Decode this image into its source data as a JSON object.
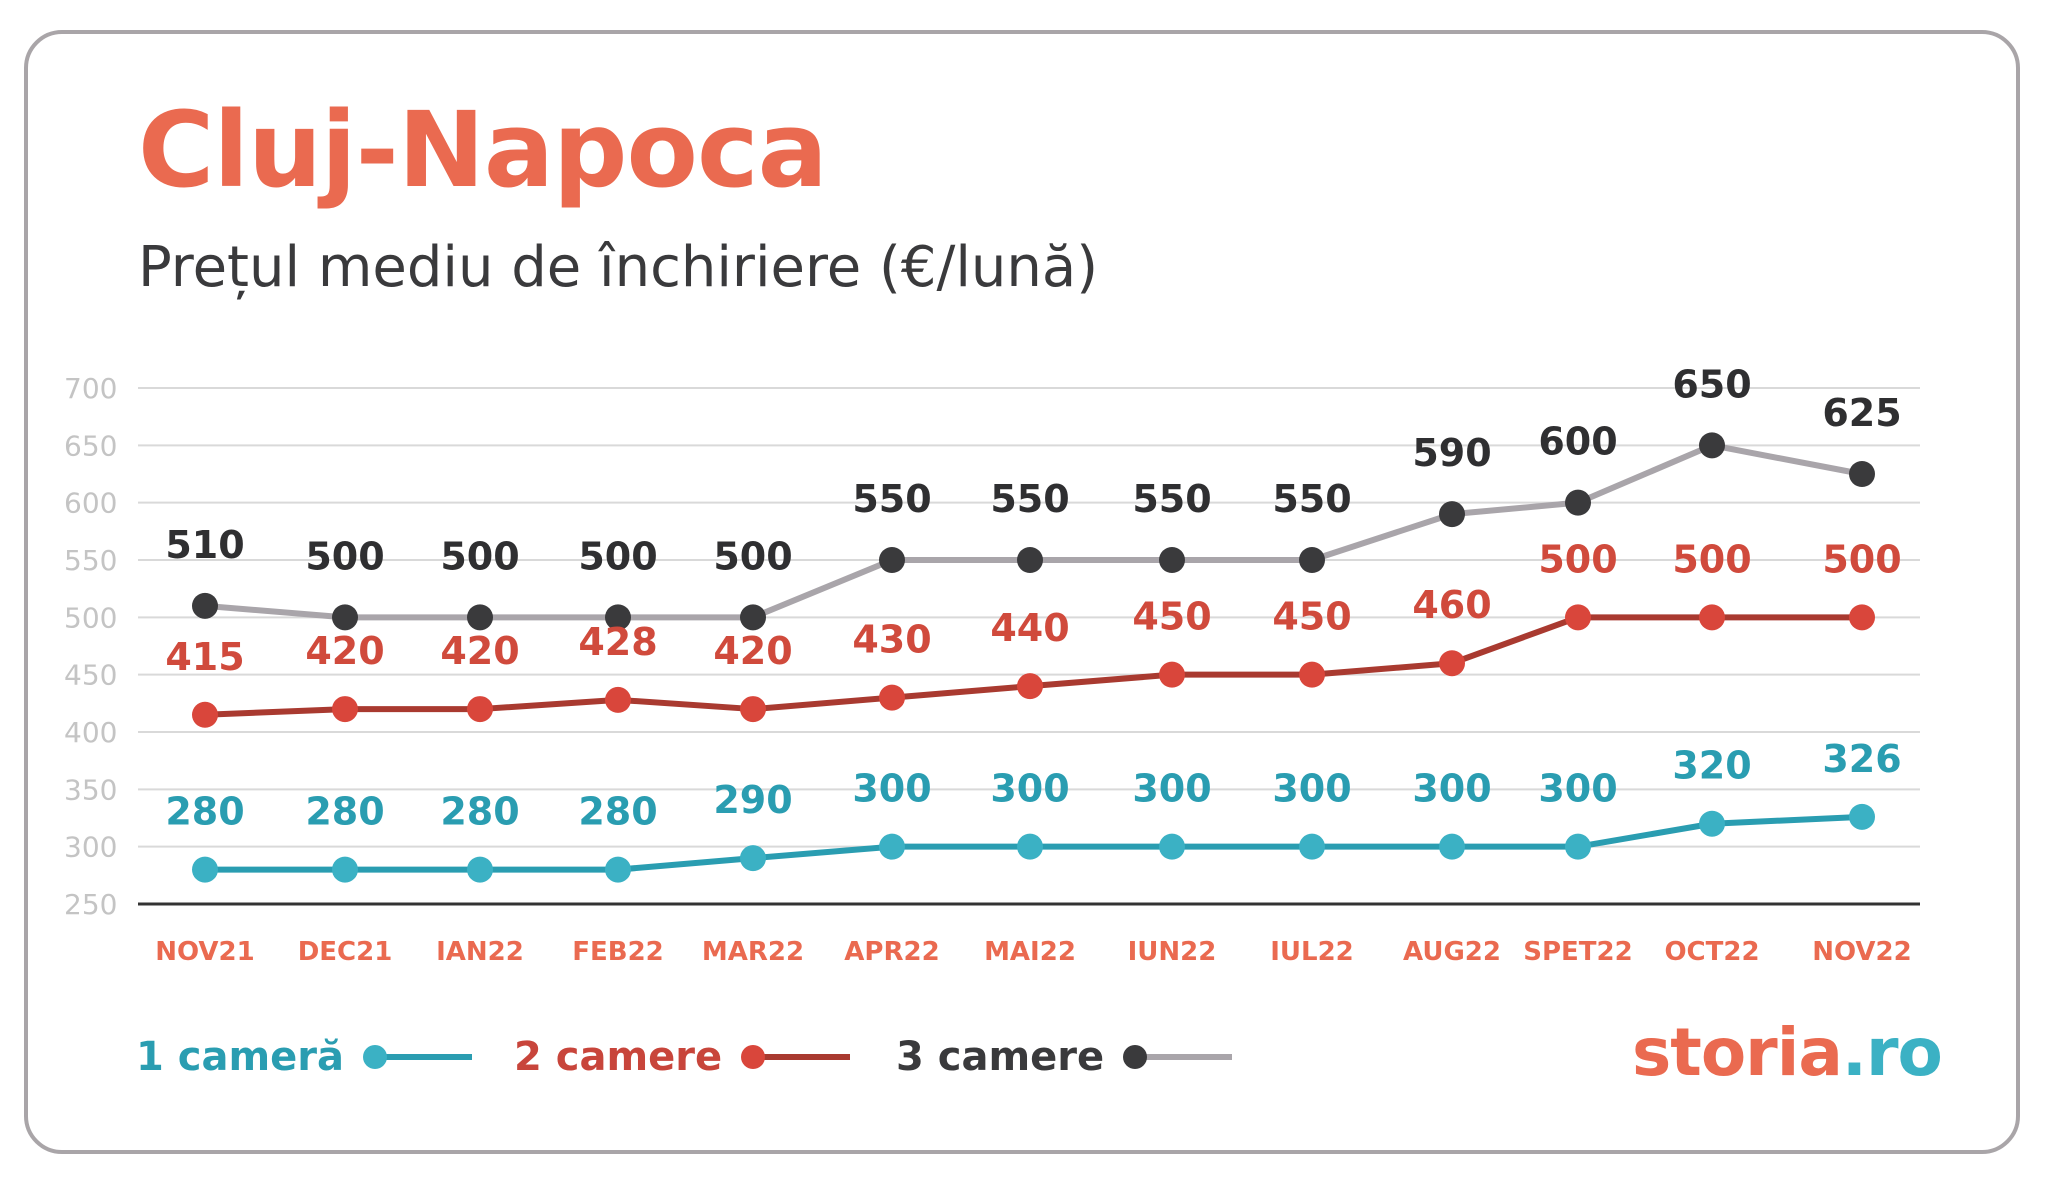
{
  "header": {
    "title": "Cluj-Napoca",
    "subtitle": "Prețul mediu de închiriere (€/lună)"
  },
  "legend": {
    "items": [
      {
        "label": "1 cameră",
        "color": "#2a9db1",
        "line_color": "#2a9db1",
        "marker_color": "#3bb1c4"
      },
      {
        "label": "2 camere",
        "color": "#c8453b",
        "line_color": "#a93a30",
        "marker_color": "#d9463b"
      },
      {
        "label": "3 camere",
        "color": "#3a3a3c",
        "line_color": "#a9a5aa",
        "marker_color": "#3a3a3c"
      }
    ]
  },
  "logo": {
    "part1": "storia",
    "part2": ".ro"
  },
  "chart_data": {
    "type": "line",
    "categories": [
      "NOV21",
      "DEC21",
      "IAN22",
      "FEB22",
      "MAR22",
      "APR22",
      "MAI22",
      "IUN22",
      "IUL22",
      "AUG22",
      "SPET22",
      "OCT22",
      "NOV22"
    ],
    "ylim": [
      250,
      700
    ],
    "yticks": [
      250,
      300,
      350,
      400,
      450,
      500,
      550,
      600,
      650,
      700
    ],
    "grid": true,
    "legend_position": "bottom-left",
    "series": [
      {
        "name": "1 cameră",
        "values": [
          280,
          280,
          280,
          280,
          290,
          300,
          300,
          300,
          300,
          300,
          300,
          320,
          326
        ],
        "line_color": "#2a9db1",
        "marker_color": "#3bb1c4",
        "label_color": "#2a9db1"
      },
      {
        "name": "2 camere",
        "values": [
          415,
          420,
          420,
          428,
          420,
          430,
          440,
          450,
          450,
          460,
          500,
          500,
          500
        ],
        "line_color": "#a93a30",
        "marker_color": "#d9463b",
        "label_color": "#d04a3c"
      },
      {
        "name": "3 camere",
        "values": [
          510,
          500,
          500,
          500,
          500,
          550,
          550,
          550,
          550,
          590,
          600,
          650,
          625
        ],
        "line_color": "#a9a5aa",
        "marker_color": "#3a3a3c",
        "label_color": "#2f2f31"
      }
    ],
    "colors": {
      "grid": "#d9d9d9",
      "axis": "#333333",
      "ytick": "#c4c4c4",
      "xtick": "#ea6a50"
    }
  }
}
